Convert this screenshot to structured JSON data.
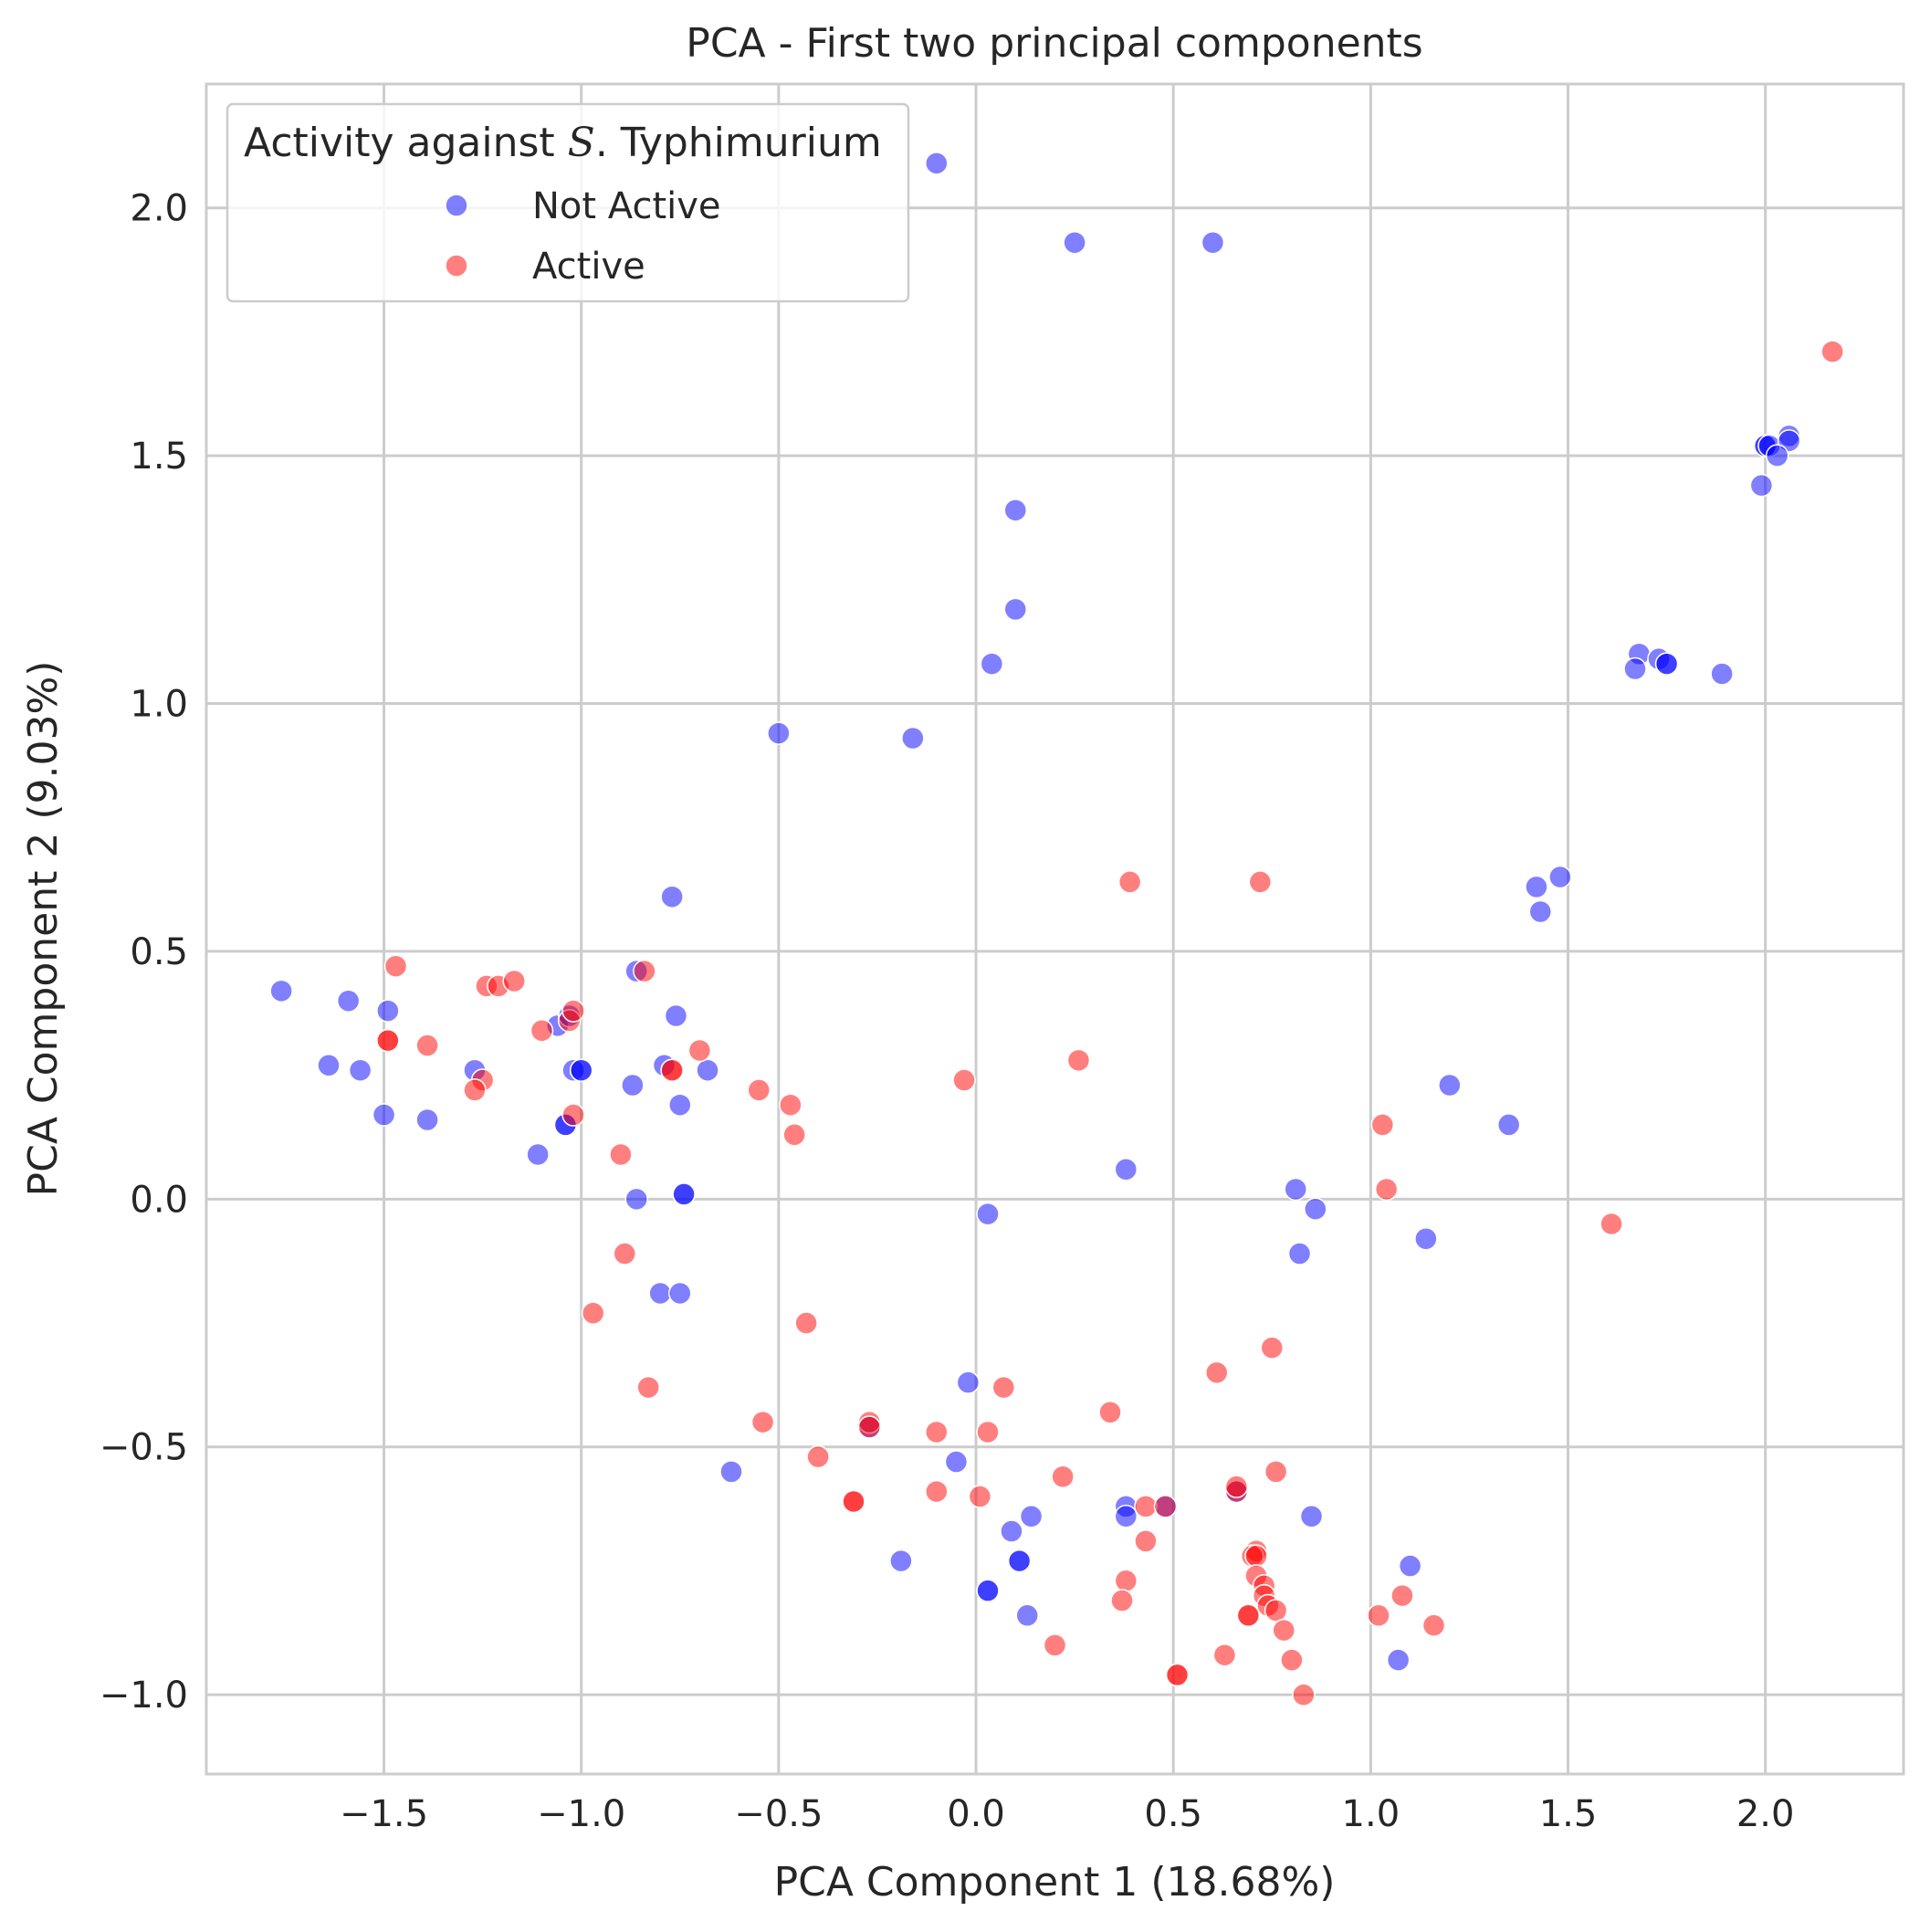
{
  "chart_data": {
    "type": "scatter",
    "title": "PCA - First two principal components",
    "xlabel": "PCA Component 1 (18.68%)",
    "ylabel": "PCA Component 2 (9.03%)",
    "xlim": [
      -1.95,
      2.35
    ],
    "ylim": [
      -1.16,
      2.25
    ],
    "xticks": [
      -1.5,
      -1.0,
      -0.5,
      0.0,
      0.5,
      1.0,
      1.5,
      2.0
    ],
    "xtick_labels": [
      "−1.5",
      "−1.0",
      "−0.5",
      "0.0",
      "0.5",
      "1.0",
      "1.5",
      "2.0"
    ],
    "yticks": [
      -1.0,
      -0.5,
      0.0,
      0.5,
      1.0,
      1.5,
      2.0
    ],
    "ytick_labels": [
      "−1.0",
      "−0.5",
      "0.0",
      "0.5",
      "1.0",
      "1.5",
      "2.0"
    ],
    "grid": true,
    "legend": {
      "title_prefix": "Activity against ",
      "title_italic": "S",
      "title_suffix": ".  Typhimurium",
      "placement": "top-left"
    },
    "series": [
      {
        "name": "Not Active",
        "color": "#0000ff",
        "opacity": 0.5,
        "points": [
          [
            -0.1,
            2.09
          ],
          [
            0.25,
            1.93
          ],
          [
            0.6,
            1.93
          ],
          [
            2.0,
            1.52
          ],
          [
            2.0,
            1.52
          ],
          [
            2.01,
            1.52
          ],
          [
            2.06,
            1.54
          ],
          [
            2.06,
            1.53
          ],
          [
            2.03,
            1.5
          ],
          [
            1.99,
            1.44
          ],
          [
            0.1,
            1.39
          ],
          [
            0.1,
            1.19
          ],
          [
            0.04,
            1.08
          ],
          [
            1.68,
            1.1
          ],
          [
            1.67,
            1.07
          ],
          [
            1.73,
            1.09
          ],
          [
            1.75,
            1.08
          ],
          [
            1.75,
            1.08
          ],
          [
            1.89,
            1.06
          ],
          [
            -0.5,
            0.94
          ],
          [
            -0.16,
            0.93
          ],
          [
            1.48,
            0.65
          ],
          [
            1.42,
            0.63
          ],
          [
            1.43,
            0.58
          ],
          [
            -0.77,
            0.61
          ],
          [
            -1.76,
            0.42
          ],
          [
            -1.59,
            0.4
          ],
          [
            -1.49,
            0.38
          ],
          [
            -0.86,
            0.46
          ],
          [
            -0.76,
            0.37
          ],
          [
            -1.06,
            0.35
          ],
          [
            -1.03,
            0.37
          ],
          [
            -1.02,
            0.26
          ],
          [
            -1.0,
            0.26
          ],
          [
            -1.0,
            0.26
          ],
          [
            -1.64,
            0.27
          ],
          [
            -1.56,
            0.26
          ],
          [
            -1.27,
            0.26
          ],
          [
            -0.79,
            0.27
          ],
          [
            -0.68,
            0.26
          ],
          [
            -0.87,
            0.23
          ],
          [
            -0.75,
            0.19
          ],
          [
            -1.5,
            0.17
          ],
          [
            -1.39,
            0.16
          ],
          [
            -1.04,
            0.15
          ],
          [
            -1.04,
            0.15
          ],
          [
            -1.11,
            0.09
          ],
          [
            -0.86,
            0.0
          ],
          [
            -0.74,
            0.01
          ],
          [
            -0.74,
            0.01
          ],
          [
            1.2,
            0.23
          ],
          [
            1.35,
            0.15
          ],
          [
            0.38,
            0.06
          ],
          [
            0.81,
            0.02
          ],
          [
            0.86,
            -0.02
          ],
          [
            0.03,
            -0.03
          ],
          [
            0.82,
            -0.11
          ],
          [
            1.14,
            -0.08
          ],
          [
            -0.8,
            -0.19
          ],
          [
            -0.75,
            -0.19
          ],
          [
            -0.02,
            -0.37
          ],
          [
            -0.62,
            -0.55
          ],
          [
            -0.05,
            -0.53
          ],
          [
            -0.27,
            -0.46
          ],
          [
            0.38,
            -0.62
          ],
          [
            0.38,
            -0.64
          ],
          [
            0.48,
            -0.62
          ],
          [
            0.14,
            -0.64
          ],
          [
            0.09,
            -0.67
          ],
          [
            0.66,
            -0.59
          ],
          [
            0.85,
            -0.64
          ],
          [
            -0.19,
            -0.73
          ],
          [
            0.11,
            -0.73
          ],
          [
            0.11,
            -0.73
          ],
          [
            0.03,
            -0.79
          ],
          [
            0.03,
            -0.79
          ],
          [
            0.13,
            -0.84
          ],
          [
            1.1,
            -0.74
          ],
          [
            1.07,
            -0.93
          ]
        ]
      },
      {
        "name": "Active",
        "color": "#ff0000",
        "opacity": 0.5,
        "points": [
          [
            2.17,
            1.71
          ],
          [
            0.39,
            0.64
          ],
          [
            0.72,
            0.64
          ],
          [
            -1.47,
            0.47
          ],
          [
            -0.84,
            0.46
          ],
          [
            -1.24,
            0.43
          ],
          [
            -1.21,
            0.43
          ],
          [
            -1.17,
            0.44
          ],
          [
            -1.03,
            0.36
          ],
          [
            -1.02,
            0.38
          ],
          [
            -1.1,
            0.34
          ],
          [
            -1.49,
            0.32
          ],
          [
            -1.49,
            0.32
          ],
          [
            -1.39,
            0.31
          ],
          [
            -0.7,
            0.3
          ],
          [
            -0.77,
            0.26
          ],
          [
            -0.77,
            0.26
          ],
          [
            -1.25,
            0.24
          ],
          [
            -1.27,
            0.22
          ],
          [
            -0.55,
            0.22
          ],
          [
            -0.47,
            0.19
          ],
          [
            -0.46,
            0.13
          ],
          [
            -1.02,
            0.17
          ],
          [
            -0.9,
            0.09
          ],
          [
            -0.03,
            0.24
          ],
          [
            0.26,
            0.28
          ],
          [
            1.03,
            0.15
          ],
          [
            1.04,
            0.02
          ],
          [
            1.61,
            -0.05
          ],
          [
            -0.89,
            -0.11
          ],
          [
            -0.97,
            -0.23
          ],
          [
            -0.43,
            -0.25
          ],
          [
            -0.83,
            -0.38
          ],
          [
            0.07,
            -0.38
          ],
          [
            0.61,
            -0.35
          ],
          [
            0.75,
            -0.3
          ],
          [
            0.34,
            -0.43
          ],
          [
            -0.54,
            -0.45
          ],
          [
            -0.27,
            -0.45
          ],
          [
            -0.27,
            -0.46
          ],
          [
            -0.1,
            -0.47
          ],
          [
            0.03,
            -0.47
          ],
          [
            -0.4,
            -0.52
          ],
          [
            0.22,
            -0.56
          ],
          [
            -0.31,
            -0.61
          ],
          [
            -0.31,
            -0.61
          ],
          [
            -0.1,
            -0.59
          ],
          [
            0.01,
            -0.6
          ],
          [
            0.43,
            -0.62
          ],
          [
            0.48,
            -0.62
          ],
          [
            0.66,
            -0.59
          ],
          [
            0.66,
            -0.58
          ],
          [
            0.76,
            -0.55
          ],
          [
            0.43,
            -0.69
          ],
          [
            0.71,
            -0.71
          ],
          [
            0.7,
            -0.72
          ],
          [
            0.71,
            -0.72
          ],
          [
            0.71,
            -0.76
          ],
          [
            0.73,
            -0.78
          ],
          [
            0.73,
            -0.8
          ],
          [
            0.74,
            -0.82
          ],
          [
            0.76,
            -0.83
          ],
          [
            0.69,
            -0.84
          ],
          [
            0.69,
            -0.84
          ],
          [
            0.38,
            -0.77
          ],
          [
            0.37,
            -0.81
          ],
          [
            0.78,
            -0.87
          ],
          [
            0.2,
            -0.9
          ],
          [
            0.63,
            -0.92
          ],
          [
            0.8,
            -0.93
          ],
          [
            0.51,
            -0.96
          ],
          [
            0.51,
            -0.96
          ],
          [
            0.83,
            -1.0
          ],
          [
            1.02,
            -0.84
          ],
          [
            1.08,
            -0.8
          ],
          [
            1.16,
            -0.86
          ]
        ]
      }
    ]
  }
}
